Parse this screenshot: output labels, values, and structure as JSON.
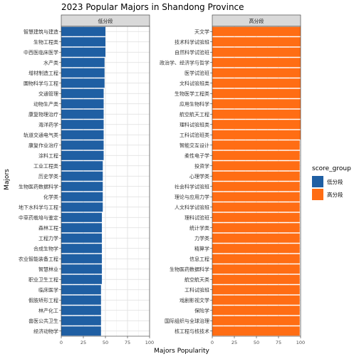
{
  "chart_data": {
    "type": "bar",
    "orientation": "horizontal",
    "title": "2023 Popular Majors in Shandong Province",
    "xlabel": "Majors Popularity",
    "ylabel": "Majors",
    "xlim": [
      0,
      100
    ],
    "xticks": [
      "0",
      "25",
      "50",
      "75",
      "100"
    ],
    "grid": true,
    "legend": {
      "title": "score_group",
      "placement": "right",
      "entries": [
        {
          "label": "低分段",
          "color": "#1F5FA3"
        },
        {
          "label": "高分段",
          "color": "#FF6D14"
        }
      ]
    },
    "panels": [
      {
        "name": "低分段",
        "color": "#1F5FA3",
        "categories": [
          "智慧建筑与建造",
          "生物工程类",
          "中西医临床医学",
          "水产类",
          "增材制造工程",
          "園物科学与工程",
          "交通管理",
          "动物生产类",
          "康复物理治疗",
          "海洋药学",
          "轨道交通电气类",
          "康复作业治疗",
          "涂料工程",
          "工业工程类",
          "历史学类",
          "生物医药数据科学",
          "化学类",
          "地下水科学与工程",
          "中草药栽培与鉴定",
          "森林工程",
          "工程力学",
          "合成生物学",
          "农业智能装备工程",
          "智慧林业",
          "职业卫生工程",
          "临床医学",
          "假肢矫形工程",
          "林产化工",
          "兽医公共卫生",
          "经济动物学"
        ],
        "values": [
          50,
          50,
          50,
          49,
          49,
          49,
          48,
          48,
          48,
          48,
          48,
          48,
          48,
          47,
          47,
          47,
          47,
          47,
          46,
          46,
          46,
          46,
          46,
          46,
          46,
          45,
          45,
          45,
          45,
          45
        ]
      },
      {
        "name": "高分段",
        "color": "#FF6D14",
        "categories": [
          "天文学",
          "技术科学试验班",
          "自然科学试验班",
          "政治学、经济学与哲学",
          "医学试验班",
          "文科试验班类",
          "生物医学工程类",
          "应用生物科学",
          "航空航天工程",
          "理科试验班类",
          "工科试验班类",
          "智能交互设计",
          "柔性电子学",
          "投资学",
          "心理学类",
          "社会科学试验班",
          "理论与应用力学",
          "人文科学试验班",
          "理科试验班",
          "统计学类",
          "力学类",
          "精算学",
          "信息工程",
          "生物医药数据科学",
          "航空航天类",
          "工科试验班",
          "戏剧影视文学",
          "保险学",
          "国际组织与全球治理",
          "核工程与核技术"
        ],
        "values": [
          100,
          100,
          100,
          100,
          100,
          100,
          100,
          100,
          100,
          100,
          100,
          99,
          99,
          99,
          99,
          99,
          99,
          99,
          99,
          99,
          99,
          99,
          99,
          99,
          99,
          99,
          99,
          99,
          99,
          99
        ]
      }
    ]
  }
}
